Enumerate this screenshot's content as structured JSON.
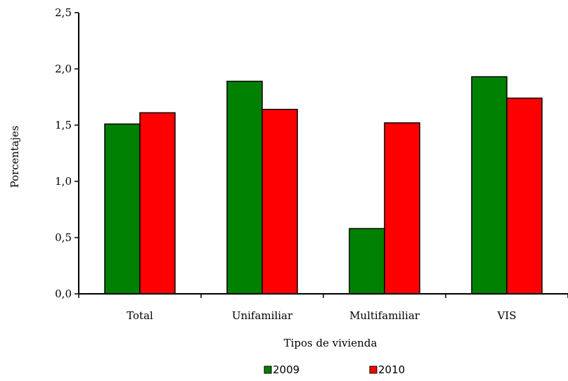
{
  "chart_data": {
    "type": "bar",
    "title": "",
    "xlabel": "Tipos de vivienda",
    "ylabel": "Porcentajes",
    "categories": [
      "Total",
      "Unifamiliar",
      "Multifamiliar",
      "VIS"
    ],
    "series": [
      {
        "name": "2009",
        "color": "#008000",
        "values": [
          1.51,
          1.89,
          0.58,
          1.93
        ]
      },
      {
        "name": "2010",
        "color": "#ff0000",
        "values": [
          1.61,
          1.64,
          1.52,
          1.74
        ]
      }
    ],
    "ylim": [
      0,
      2.5
    ],
    "yticks": [
      "0,0",
      "0,5",
      "1,0",
      "1,5",
      "2,0",
      "2,5"
    ],
    "grid": false,
    "legend_position": "bottom"
  }
}
